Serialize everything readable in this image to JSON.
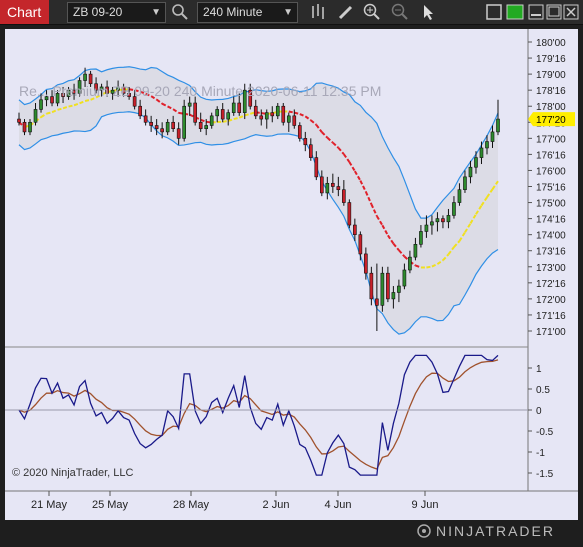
{
  "toolbar": {
    "chart_tab": "Chart",
    "instrument": "ZB 09-20",
    "interval": "240 Minute",
    "icons": [
      "search-icon",
      "bar-type-icon",
      "draw-pencil-icon",
      "zoom-in-icon",
      "zoom-out-icon",
      "pointer-icon",
      "window-restore-icon",
      "green-status-icon",
      "minimize-icon",
      "maximize-icon",
      "close-icon"
    ]
  },
  "chart": {
    "watermark": "Re... Premium ZB 09-20  240 Minute  2020-06-11 12:35 PM",
    "copyright": "© 2020 NinjaTrader, LLC",
    "price_labels": [
      "180'00",
      "179'16",
      "179'00",
      "178'16",
      "178'00",
      "177'16",
      "177'00",
      "176'16",
      "176'00",
      "175'16",
      "175'00",
      "174'16",
      "174'00",
      "173'16",
      "173'00",
      "172'16",
      "172'00",
      "171'16",
      "171'00"
    ],
    "last_price": "177'20",
    "osc_labels": [
      "1",
      "0.5",
      "0",
      "-0.5",
      "-1",
      "-1.5"
    ],
    "date_labels": [
      "21 May",
      "25 May",
      "28 May",
      "2 Jun",
      "4 Jun",
      "9 Jun"
    ],
    "brand": "NINJATRADER",
    "colors": {
      "bull": "#2e8b2e",
      "bear": "#c8202a",
      "band": "#2f8fe6",
      "mid_down": "#e0202a",
      "mid_up": "#2a5cff",
      "dot_line": "#f0e020",
      "osc_fast": "#1a1a8a",
      "osc_slow": "#a0522d"
    }
  },
  "chart_data": {
    "type": "candlestick",
    "price_axis": {
      "min": 170.75,
      "max": 180.25,
      "tick_step": 0.5
    },
    "candles_ohlc": [
      [
        177.6,
        177.8,
        177.4,
        177.5
      ],
      [
        177.5,
        177.6,
        177.1,
        177.2
      ],
      [
        177.2,
        177.6,
        177.1,
        177.5
      ],
      [
        177.5,
        178.1,
        177.4,
        177.9
      ],
      [
        177.9,
        178.4,
        177.8,
        178.2
      ],
      [
        178.2,
        178.5,
        178.0,
        178.3
      ],
      [
        178.3,
        178.5,
        178.0,
        178.1
      ],
      [
        178.1,
        178.5,
        178.0,
        178.4
      ],
      [
        178.4,
        178.6,
        178.1,
        178.3
      ],
      [
        178.3,
        178.6,
        178.2,
        178.5
      ],
      [
        178.5,
        178.7,
        178.2,
        178.4
      ],
      [
        178.4,
        178.9,
        178.3,
        178.8
      ],
      [
        178.8,
        179.2,
        178.6,
        179.0
      ],
      [
        179.0,
        179.1,
        178.6,
        178.7
      ],
      [
        178.7,
        178.9,
        178.4,
        178.5
      ],
      [
        178.5,
        178.7,
        178.3,
        178.6
      ],
      [
        178.6,
        178.8,
        178.3,
        178.4
      ],
      [
        178.4,
        178.6,
        178.2,
        178.5
      ],
      [
        178.5,
        178.8,
        178.3,
        178.6
      ],
      [
        178.6,
        178.7,
        178.3,
        178.4
      ],
      [
        178.4,
        178.6,
        178.2,
        178.3
      ],
      [
        178.3,
        178.5,
        177.9,
        178.0
      ],
      [
        178.0,
        178.2,
        177.6,
        177.7
      ],
      [
        177.7,
        177.9,
        177.4,
        177.5
      ],
      [
        177.5,
        177.7,
        177.2,
        177.4
      ],
      [
        177.4,
        177.6,
        177.1,
        177.3
      ],
      [
        177.3,
        177.5,
        177.0,
        177.2
      ],
      [
        177.2,
        177.6,
        177.1,
        177.5
      ],
      [
        177.5,
        177.7,
        177.2,
        177.3
      ],
      [
        177.3,
        177.5,
        176.8,
        177.0
      ],
      [
        177.0,
        178.2,
        176.9,
        178.0
      ],
      [
        178.0,
        178.3,
        177.7,
        178.1
      ],
      [
        178.1,
        178.3,
        177.4,
        177.5
      ],
      [
        177.5,
        177.8,
        177.2,
        177.3
      ],
      [
        177.3,
        177.6,
        177.1,
        177.4
      ],
      [
        177.4,
        177.8,
        177.3,
        177.7
      ],
      [
        177.7,
        178.0,
        177.5,
        177.9
      ],
      [
        177.9,
        178.1,
        177.5,
        177.6
      ],
      [
        177.6,
        177.9,
        177.4,
        177.8
      ],
      [
        177.8,
        178.3,
        177.7,
        178.1
      ],
      [
        178.1,
        178.4,
        177.7,
        177.8
      ],
      [
        177.8,
        178.7,
        177.6,
        178.5
      ],
      [
        178.5,
        178.7,
        177.9,
        178.0
      ],
      [
        178.0,
        178.2,
        177.6,
        177.7
      ],
      [
        177.7,
        177.9,
        177.4,
        177.6
      ],
      [
        177.6,
        177.9,
        177.3,
        177.8
      ],
      [
        177.8,
        178.0,
        177.5,
        177.7
      ],
      [
        177.7,
        178.1,
        177.6,
        178.0
      ],
      [
        178.0,
        178.1,
        177.4,
        177.5
      ],
      [
        177.5,
        177.8,
        177.2,
        177.7
      ],
      [
        177.7,
        177.9,
        177.3,
        177.4
      ],
      [
        177.4,
        177.5,
        176.9,
        177.0
      ],
      [
        177.0,
        177.2,
        176.6,
        176.8
      ],
      [
        176.8,
        177.0,
        176.3,
        176.4
      ],
      [
        176.4,
        176.6,
        175.7,
        175.8
      ],
      [
        175.8,
        176.0,
        175.2,
        175.3
      ],
      [
        175.3,
        175.8,
        175.1,
        175.6
      ],
      [
        175.6,
        175.9,
        175.3,
        175.5
      ],
      [
        175.5,
        175.8,
        175.2,
        175.4
      ],
      [
        175.4,
        175.7,
        174.9,
        175.0
      ],
      [
        175.0,
        175.1,
        174.2,
        174.3
      ],
      [
        174.3,
        174.5,
        173.8,
        174.0
      ],
      [
        174.0,
        174.1,
        173.2,
        173.4
      ],
      [
        173.4,
        173.6,
        172.6,
        172.8
      ],
      [
        172.8,
        173.0,
        171.8,
        172.0
      ],
      [
        172.0,
        173.1,
        171.0,
        171.8
      ],
      [
        171.8,
        173.0,
        171.6,
        172.8
      ],
      [
        172.8,
        173.0,
        171.9,
        172.0
      ],
      [
        172.0,
        172.4,
        171.7,
        172.2
      ],
      [
        172.2,
        172.6,
        171.9,
        172.4
      ],
      [
        172.4,
        173.1,
        172.3,
        172.9
      ],
      [
        172.9,
        173.5,
        172.8,
        173.3
      ],
      [
        173.3,
        173.9,
        173.2,
        173.7
      ],
      [
        173.7,
        174.3,
        173.6,
        174.1
      ],
      [
        174.1,
        174.6,
        173.9,
        174.3
      ],
      [
        174.3,
        174.6,
        174.0,
        174.4
      ],
      [
        174.4,
        174.7,
        174.1,
        174.5
      ],
      [
        174.5,
        174.6,
        174.2,
        174.4
      ],
      [
        174.4,
        174.8,
        174.2,
        174.6
      ],
      [
        174.6,
        175.2,
        174.5,
        175.0
      ],
      [
        175.0,
        175.6,
        174.9,
        175.4
      ],
      [
        175.4,
        176.0,
        175.3,
        175.8
      ],
      [
        175.8,
        176.3,
        175.6,
        176.1
      ],
      [
        176.1,
        176.6,
        175.9,
        176.4
      ],
      [
        176.4,
        176.9,
        176.2,
        176.7
      ],
      [
        176.7,
        177.1,
        176.5,
        176.9
      ],
      [
        176.9,
        177.4,
        176.7,
        177.2
      ],
      [
        177.2,
        178.2,
        177.1,
        177.6
      ]
    ],
    "osc_axis": {
      "min": -1.75,
      "max": 1.4
    }
  }
}
